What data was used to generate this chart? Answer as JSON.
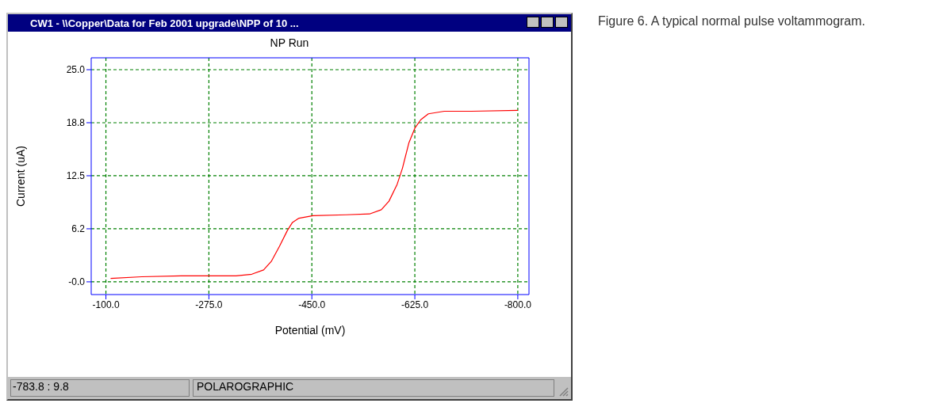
{
  "chart_data": {
    "type": "line",
    "title": "NP Run",
    "xlabel": "Potential (mV)",
    "ylabel": "Current (uA)",
    "x": [
      -108,
      -161,
      -228,
      -321,
      -348,
      -368,
      -381,
      -395,
      -408,
      -417,
      -428,
      -452,
      -508,
      -548,
      -568,
      -581,
      -595,
      -604,
      -615,
      -625,
      -635,
      -648,
      -675,
      -721,
      -800
    ],
    "series": [
      {
        "color": "#ff0000",
        "values": [
          0.4,
          0.6,
          0.7,
          0.7,
          0.9,
          1.4,
          2.4,
          4.2,
          6.0,
          7.0,
          7.5,
          7.8,
          7.9,
          8.0,
          8.5,
          9.5,
          11.5,
          13.4,
          16.4,
          18.1,
          19.1,
          19.8,
          20.1,
          20.1,
          20.2
        ]
      }
    ],
    "xlim": [
      -75,
      -819
    ],
    "ylim": [
      -1.5,
      26.4
    ],
    "xticks": [
      {
        "value": -100,
        "label": "-100.0"
      },
      {
        "value": -275,
        "label": "-275.0"
      },
      {
        "value": -450,
        "label": "-450.0"
      },
      {
        "value": -625,
        "label": "-625.0"
      },
      {
        "value": -800,
        "label": "-800.0"
      }
    ],
    "yticks": [
      {
        "value": 0,
        "label": "-0.0"
      },
      {
        "value": 6.25,
        "label": "6.2"
      },
      {
        "value": 12.5,
        "label": "12.5"
      },
      {
        "value": 18.75,
        "label": "18.8"
      },
      {
        "value": 25,
        "label": "25.0"
      }
    ],
    "grid": true,
    "marker": "none",
    "line_style": "solid",
    "annotations": [
      "CW1 - \\\\Copper\\Data for Feb 2001 upgrade\\NPP of 10 ...",
      "-783.8 : 9.8",
      "POLAROGRAPHIC",
      "Figure 6. A typical normal pulse voltammogram."
    ]
  }
}
